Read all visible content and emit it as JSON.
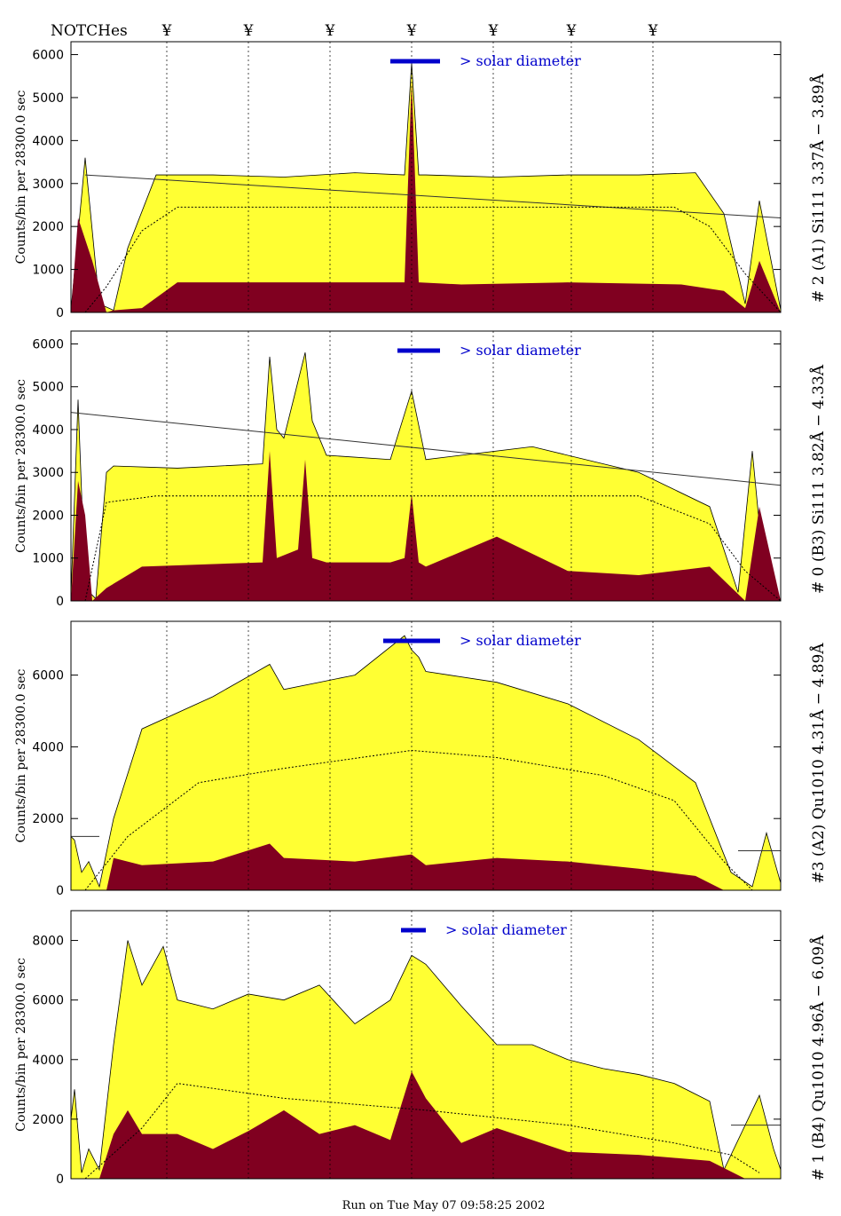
{
  "figure": {
    "notches_label": "NOTCHes",
    "notch_marker": "¥",
    "notch_positions": [
      0.135,
      0.25,
      0.365,
      0.48,
      0.595,
      0.705,
      0.82
    ],
    "footer": "Run on Tue May 07 09:58:25 2002",
    "colors": {
      "total": "#ffff33",
      "dark": "#800020",
      "solar_bar": "#0000cc",
      "frame": "#000000"
    }
  },
  "chart_data": [
    {
      "type": "area",
      "title": "",
      "label": "# 2 (A1) Si111  3.37Å − 3.89Å",
      "ylabel": "Counts/bin per  28300.0 sec",
      "ylim": [
        0,
        6300
      ],
      "yticks": [
        0,
        1000,
        2000,
        3000,
        4000,
        5000,
        6000
      ],
      "solar_text": "> solar diameter",
      "solar_bar": [
        0.45,
        0.52
      ],
      "grid": false,
      "series": [
        {
          "name": "",
          "type": "total",
          "x": [
            0,
            0.02,
            0.04,
            0.06,
            0.08,
            0.12,
            0.2,
            0.3,
            0.4,
            0.47,
            0.48,
            0.49,
            0.5,
            0.6,
            0.7,
            0.8,
            0.88,
            0.92,
            0.95,
            0.97,
            1.0
          ],
          "values": [
            50,
            3600,
            200,
            50,
            1500,
            3200,
            3200,
            3150,
            3250,
            3200,
            5800,
            3200,
            3200,
            3150,
            3200,
            3200,
            3250,
            2300,
            200,
            2600,
            60
          ]
        },
        {
          "name": "",
          "type": "dark",
          "x": [
            0,
            0.01,
            0.03,
            0.05,
            0.06,
            0.1,
            0.15,
            0.3,
            0.45,
            0.47,
            0.48,
            0.49,
            0.55,
            0.7,
            0.86,
            0.92,
            0.95,
            0.97,
            1.0
          ],
          "values": [
            0,
            2200,
            1200,
            0,
            50,
            100,
            700,
            700,
            700,
            700,
            5400,
            700,
            650,
            700,
            650,
            500,
            100,
            1200,
            0
          ]
        },
        {
          "name": "",
          "type": "line",
          "x": [
            0.02,
            1.0
          ],
          "values": [
            3200,
            2200
          ]
        },
        {
          "name": "",
          "type": "dotted",
          "x": [
            0.02,
            0.05,
            0.1,
            0.15,
            0.5,
            0.85,
            0.9,
            0.95,
            1.0
          ],
          "values": [
            0,
            600,
            1900,
            2450,
            2450,
            2450,
            2000,
            900,
            0
          ]
        }
      ]
    },
    {
      "type": "area",
      "title": "",
      "label": "# 0 (B3) Si111  3.82Å − 4.33Å",
      "ylabel": "Counts/bin per  28300.0 sec",
      "ylim": [
        0,
        6300
      ],
      "yticks": [
        0,
        1000,
        2000,
        3000,
        4000,
        5000,
        6000
      ],
      "solar_text": "> solar diameter",
      "solar_bar": [
        0.46,
        0.52
      ],
      "grid": false,
      "series": [
        {
          "name": "",
          "type": "total",
          "x": [
            0,
            0.01,
            0.02,
            0.035,
            0.05,
            0.06,
            0.15,
            0.27,
            0.28,
            0.29,
            0.3,
            0.33,
            0.34,
            0.36,
            0.45,
            0.48,
            0.5,
            0.65,
            0.8,
            0.9,
            0.94,
            0.96,
            0.98,
            1.0
          ],
          "values": [
            100,
            4700,
            300,
            50,
            3000,
            3150,
            3100,
            3200,
            5700,
            4000,
            3800,
            5800,
            4200,
            3400,
            3300,
            4900,
            3300,
            3600,
            3000,
            2200,
            200,
            3500,
            50,
            0
          ]
        },
        {
          "name": "",
          "type": "dark",
          "x": [
            0,
            0.01,
            0.02,
            0.03,
            0.05,
            0.1,
            0.27,
            0.28,
            0.29,
            0.32,
            0.33,
            0.34,
            0.36,
            0.45,
            0.47,
            0.48,
            0.49,
            0.5,
            0.6,
            0.7,
            0.8,
            0.9,
            0.95,
            0.97,
            1.0
          ],
          "values": [
            0,
            2800,
            2000,
            0,
            300,
            800,
            900,
            3500,
            1000,
            1200,
            3300,
            1000,
            900,
            900,
            1000,
            2500,
            900,
            800,
            1500,
            700,
            600,
            800,
            0,
            2200,
            0
          ]
        },
        {
          "name": "",
          "type": "line",
          "x": [
            0.0,
            1.0
          ],
          "values": [
            4400,
            2700
          ]
        },
        {
          "name": "",
          "type": "dotted",
          "x": [
            0.02,
            0.05,
            0.12,
            0.8,
            0.9,
            0.95,
            1.0
          ],
          "values": [
            0,
            2300,
            2450,
            2450,
            1800,
            700,
            0
          ]
        }
      ]
    },
    {
      "type": "area",
      "title": "",
      "label": "#3 (A2) Qu1010  4.31Å − 4.89Å",
      "ylabel": "Counts/bin per  28300.0 sec",
      "ylim": [
        0,
        7500
      ],
      "yticks": [
        0,
        2000,
        4000,
        6000
      ],
      "solar_text": "> solar diameter",
      "solar_bar": [
        0.44,
        0.52
      ],
      "grid": false,
      "series": [
        {
          "name": "",
          "type": "total",
          "x": [
            0,
            0.005,
            0.015,
            0.025,
            0.04,
            0.06,
            0.1,
            0.2,
            0.28,
            0.3,
            0.4,
            0.47,
            0.48,
            0.49,
            0.5,
            0.6,
            0.7,
            0.8,
            0.88,
            0.93,
            0.96,
            0.98,
            1.0
          ],
          "values": [
            1500,
            1400,
            500,
            800,
            100,
            2000,
            4500,
            5400,
            6300,
            5600,
            6000,
            7100,
            6700,
            6500,
            6100,
            5800,
            5200,
            4200,
            3000,
            500,
            100,
            1600,
            200
          ]
        },
        {
          "name": "",
          "type": "dark",
          "x": [
            0,
            0.05,
            0.06,
            0.1,
            0.2,
            0.28,
            0.3,
            0.4,
            0.48,
            0.5,
            0.6,
            0.7,
            0.8,
            0.88,
            0.92,
            1.0
          ],
          "values": [
            0,
            0,
            900,
            700,
            800,
            1300,
            900,
            800,
            1000,
            700,
            900,
            800,
            600,
            400,
            0,
            0
          ]
        },
        {
          "name": "",
          "type": "line",
          "x": [
            0.0,
            0.04
          ],
          "values": [
            1500,
            1500
          ]
        },
        {
          "name": "",
          "type": "line",
          "x": [
            0.94,
            1.0
          ],
          "values": [
            1100,
            1100
          ]
        },
        {
          "name": "",
          "type": "dotted",
          "x": [
            0.02,
            0.08,
            0.18,
            0.3,
            0.48,
            0.6,
            0.75,
            0.85,
            0.92,
            0.96
          ],
          "values": [
            0,
            1500,
            3000,
            3400,
            3900,
            3700,
            3200,
            2500,
            800,
            0
          ]
        }
      ]
    },
    {
      "type": "area",
      "title": "",
      "label": "# 1 (B4) Qu1010 4.96Å − 6.09Å",
      "ylabel": "Counts/bin per  28300.0 sec",
      "ylim": [
        0,
        9000
      ],
      "yticks": [
        0,
        2000,
        4000,
        6000,
        8000
      ],
      "solar_text": "> solar diameter",
      "solar_bar": [
        0.465,
        0.5
      ],
      "grid": false,
      "series": [
        {
          "name": "",
          "type": "total",
          "x": [
            0,
            0.005,
            0.015,
            0.025,
            0.04,
            0.06,
            0.08,
            0.1,
            0.13,
            0.15,
            0.2,
            0.25,
            0.3,
            0.35,
            0.4,
            0.45,
            0.48,
            0.5,
            0.55,
            0.6,
            0.65,
            0.7,
            0.75,
            0.8,
            0.85,
            0.9,
            0.92,
            0.95,
            0.97,
            0.99,
            1.0
          ],
          "values": [
            2000,
            3000,
            200,
            1000,
            300,
            4500,
            8000,
            6500,
            7800,
            6000,
            5700,
            6200,
            6000,
            6500,
            5200,
            6000,
            7500,
            7200,
            5800,
            4500,
            4500,
            4000,
            3700,
            3500,
            3200,
            2600,
            300,
            1800,
            2800,
            1000,
            300
          ]
        },
        {
          "name": "",
          "type": "dark",
          "x": [
            0,
            0.04,
            0.06,
            0.08,
            0.1,
            0.15,
            0.2,
            0.25,
            0.3,
            0.35,
            0.4,
            0.45,
            0.48,
            0.5,
            0.55,
            0.6,
            0.7,
            0.8,
            0.9,
            0.95,
            1.0
          ],
          "values": [
            0,
            0,
            1500,
            2300,
            1500,
            1500,
            1000,
            1600,
            2300,
            1500,
            1800,
            1300,
            3600,
            2700,
            1200,
            1700,
            900,
            800,
            600,
            0,
            0
          ]
        },
        {
          "name": "",
          "type": "line",
          "x": [
            0.93,
            1.0
          ],
          "values": [
            1800,
            1800
          ]
        },
        {
          "name": "",
          "type": "dotted",
          "x": [
            0.02,
            0.1,
            0.15,
            0.3,
            0.5,
            0.7,
            0.85,
            0.93,
            0.97
          ],
          "values": [
            0,
            1700,
            3200,
            2700,
            2300,
            1800,
            1200,
            800,
            200
          ]
        }
      ]
    }
  ]
}
